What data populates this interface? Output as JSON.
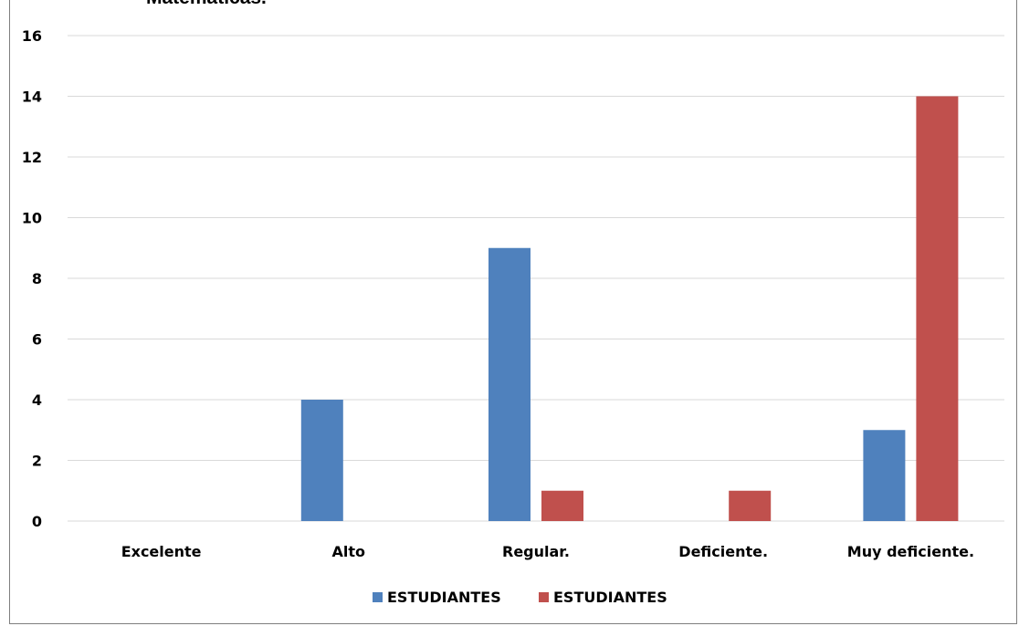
{
  "chart_data": {
    "type": "bar",
    "title": "Matemáticas.",
    "categories": [
      "Excelente",
      "Alto",
      "Regular.",
      "Deficiente.",
      "Muy deficiente."
    ],
    "series": [
      {
        "name": "ESTUDIANTES",
        "color": "#4f81bd",
        "values": [
          0,
          4,
          9,
          0,
          3
        ]
      },
      {
        "name": "ESTUDIANTES",
        "color": "#c0504d",
        "values": [
          0,
          0,
          1,
          1,
          14
        ]
      }
    ],
    "ylim": [
      0,
      16
    ],
    "yticks": [
      0,
      2,
      4,
      6,
      8,
      10,
      12,
      14,
      16
    ],
    "grid": true,
    "legend": "bottom"
  }
}
